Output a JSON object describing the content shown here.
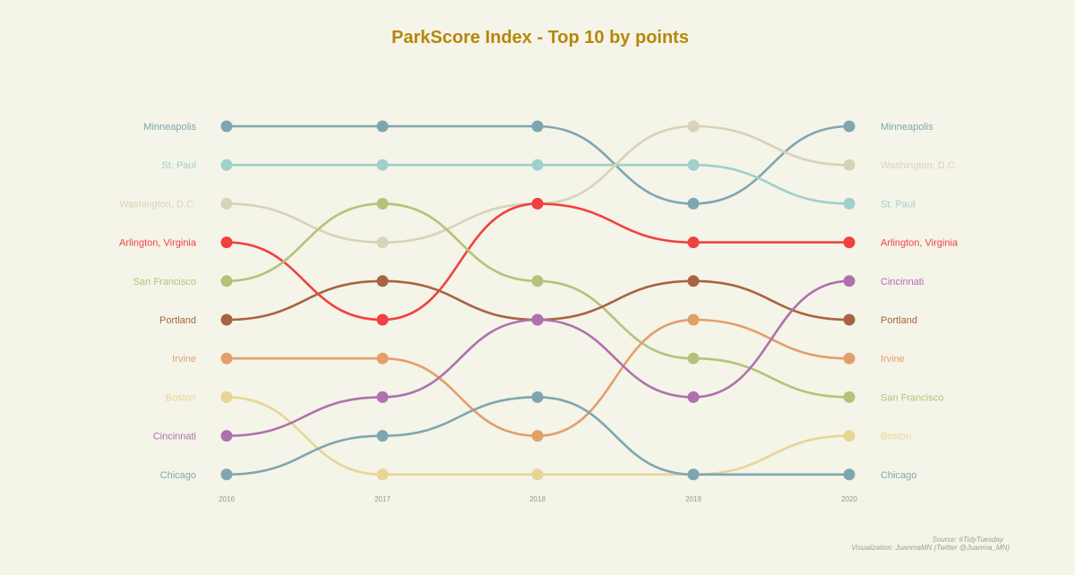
{
  "chart_data": {
    "type": "line",
    "subtype": "bump",
    "title": "ParkScore Index - Top 10 by points",
    "title_color": "#b8860b",
    "x": [
      "2016",
      "2017",
      "2018",
      "2019",
      "2020"
    ],
    "y_axis": "rank",
    "ylim": [
      1,
      10
    ],
    "grid": false,
    "legend": "none",
    "series": [
      {
        "name": "Minneapolis",
        "color": "#7fa6b0",
        "ranks": [
          1,
          1,
          1,
          3,
          1
        ]
      },
      {
        "name": "St. Paul",
        "color": "#9fd0cc",
        "ranks": [
          2,
          2,
          2,
          2,
          3
        ]
      },
      {
        "name": "Washington, D.C.",
        "color": "#d8d2b8",
        "ranks": [
          3,
          4,
          3,
          1,
          2
        ]
      },
      {
        "name": "Arlington, Virginia",
        "color": "#f24040",
        "ranks": [
          4,
          6,
          3,
          4,
          4
        ]
      },
      {
        "name": "San Francisco",
        "color": "#b5c27a",
        "ranks": [
          5,
          3,
          5,
          7,
          8
        ]
      },
      {
        "name": "Portland",
        "color": "#a86440",
        "ranks": [
          6,
          5,
          6,
          5,
          6
        ]
      },
      {
        "name": "Irvine",
        "color": "#e39f6a",
        "ranks": [
          7,
          7,
          9,
          6,
          7
        ]
      },
      {
        "name": "Boston",
        "color": "#e8d596",
        "ranks": [
          8,
          10,
          10,
          10,
          9
        ]
      },
      {
        "name": "Cincinnati",
        "color": "#b070b0",
        "ranks": [
          9,
          8,
          6,
          8,
          5
        ]
      },
      {
        "name": "Chicago",
        "color": "#7fa6b0",
        "ranks": [
          10,
          9,
          8,
          10,
          10
        ]
      }
    ],
    "caption": [
      "Source: #TidyTuesday",
      "Visualization: JuanmaMN (Twitter @Juanma_MN)"
    ]
  }
}
